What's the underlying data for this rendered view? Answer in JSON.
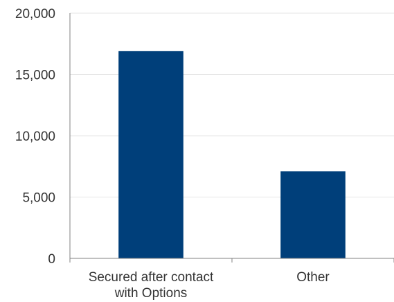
{
  "chart_data": {
    "type": "bar",
    "categories": [
      [
        "Secured after contact",
        "with Options"
      ],
      [
        "Other"
      ]
    ],
    "values": [
      16900,
      7100
    ],
    "ylim": [
      0,
      20000
    ],
    "yticks": [
      0,
      5000,
      10000,
      15000,
      20000
    ],
    "ytick_labels": [
      "0",
      "5,000",
      "10,000",
      "15,000",
      "20,000"
    ],
    "title": "",
    "xlabel": "",
    "ylabel": "",
    "grid": true,
    "legend": "none",
    "bar_color": "#003f7a"
  }
}
